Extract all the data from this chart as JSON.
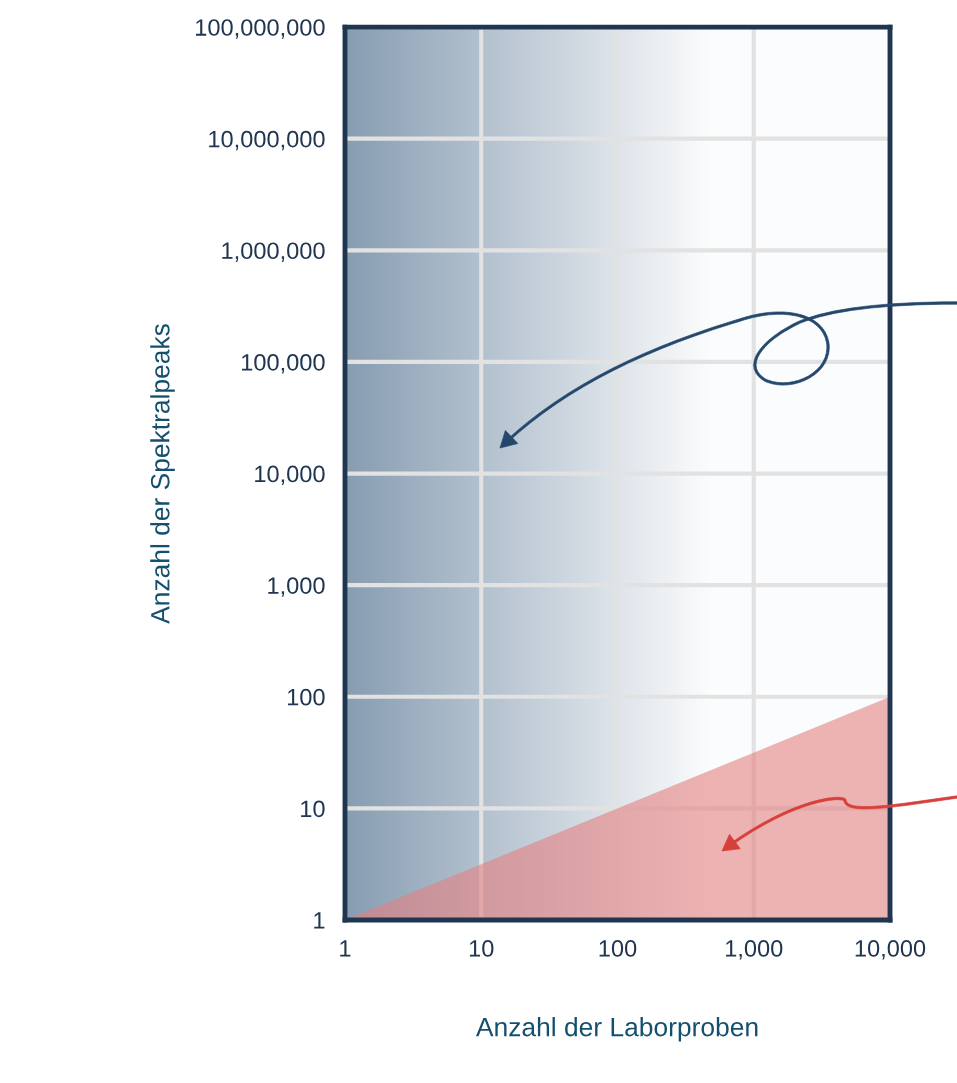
{
  "chart_data": {
    "type": "area",
    "xlabel": "Anzahl der Laborproben",
    "ylabel": "Anzahl der Spektralpeaks",
    "x": [
      1,
      10000
    ],
    "series": [
      {
        "type": "area",
        "color": "#e48080",
        "values": [
          1,
          100
        ]
      }
    ],
    "bands": [
      {
        "axis": "x",
        "from": 1,
        "to": 10000,
        "color": "#8198ae"
      }
    ],
    "log": "xy",
    "grid": true,
    "xlim": [
      1,
      10000
    ],
    "ylim": [
      1,
      100000000
    ],
    "xticks": [
      1,
      10,
      100,
      {
        "value": 1000,
        "label": "1,000"
      },
      {
        "value": 10000,
        "label": "10,000"
      }
    ],
    "yticks": [
      1,
      10,
      100,
      {
        "value": 1000,
        "label": "1,000"
      },
      {
        "value": 10000,
        "label": "10,000"
      },
      {
        "value": 100000,
        "label": "100,000"
      },
      {
        "value": 1000000,
        "label": "1,000,000"
      },
      {
        "value": 10000000,
        "label": "10,000,000"
      },
      {
        "value": 100000000,
        "label": "100,000,000"
      }
    ]
  }
}
